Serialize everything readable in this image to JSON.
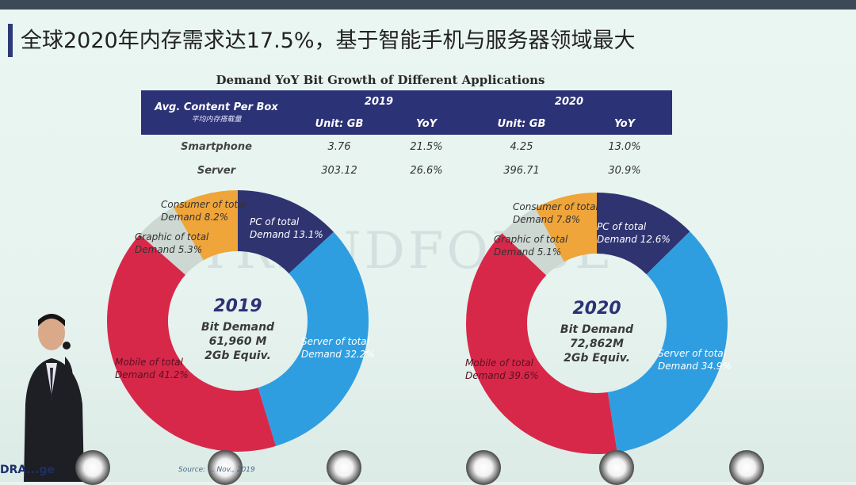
{
  "slide": {
    "title": "全球2020年内存需求达17.5%，基于智能手机与服务器领域最大",
    "source_text": "Source: ... Nov., 2019",
    "logo_text": "DRA...ge"
  },
  "colors": {
    "header_bg": "#2b3275",
    "consumer": "#f0a53a",
    "pc": "#2f3470",
    "server": "#2f9ee0",
    "mobile": "#d8284a",
    "graphic": "#cdd8d2"
  },
  "chart_data": [
    {
      "type": "table",
      "title": "Demand YoY Bit Growth of Different Applications",
      "header_label": "Avg. Content Per Box",
      "header_sublabel": "平均内存搭载量",
      "years": [
        "2019",
        "2020"
      ],
      "subcolumns": [
        "Unit: GB",
        "YoY",
        "Unit: GB",
        "YoY"
      ],
      "rows": [
        {
          "label": "Smartphone",
          "values": [
            "3.76",
            "21.5%",
            "4.25",
            "13.0%"
          ]
        },
        {
          "label": "Server",
          "values": [
            "303.12",
            "26.6%",
            "396.71",
            "30.9%"
          ]
        }
      ]
    },
    {
      "type": "pie",
      "year": "2019",
      "center_line1": "Bit Demand",
      "center_line2": "61,960 M",
      "center_line3": "2Gb Equiv.",
      "slices": [
        {
          "key": "pc",
          "line1": "PC of total",
          "line2": "Demand 13.1%",
          "value": 13.1
        },
        {
          "key": "server",
          "line1": "Server of total",
          "line2": "Demand 32.2%",
          "value": 32.2
        },
        {
          "key": "mobile",
          "line1": "Mobile of total",
          "line2": "Demand 41.2%",
          "value": 41.2
        },
        {
          "key": "graphic",
          "line1": "Graphic of total",
          "line2": "Demand 5.3%",
          "value": 5.3
        },
        {
          "key": "consumer",
          "line1": "Consumer of total",
          "line2": "Demand 8.2%",
          "value": 8.2
        }
      ]
    },
    {
      "type": "pie",
      "year": "2020",
      "center_line1": "Bit Demand",
      "center_line2": "72,862M",
      "center_line3": "2Gb Equiv.",
      "slices": [
        {
          "key": "pc",
          "line1": "PC of total",
          "line2": "Demand 12.6%",
          "value": 12.6
        },
        {
          "key": "server",
          "line1": "Server of total",
          "line2": "Demand 34.9%",
          "value": 34.9
        },
        {
          "key": "mobile",
          "line1": "Mobile of total",
          "line2": "Demand 39.6%",
          "value": 39.6
        },
        {
          "key": "graphic",
          "line1": "Graphic of total",
          "line2": "Demand 5.1%",
          "value": 5.1
        },
        {
          "key": "consumer",
          "line1": "Consumer of total",
          "line2": "Demand 7.8%",
          "value": 7.8
        }
      ]
    }
  ]
}
